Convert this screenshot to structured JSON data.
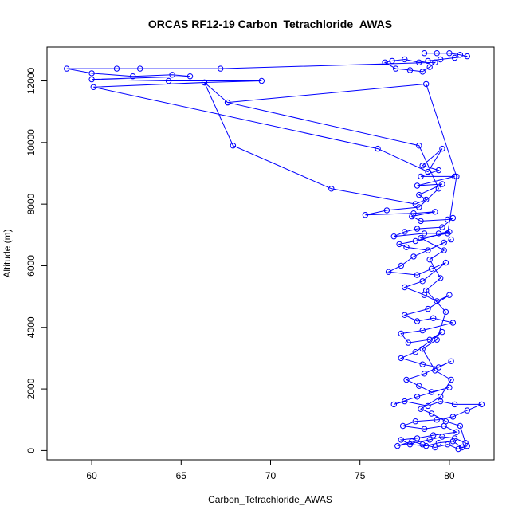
{
  "chart_data": {
    "type": "line",
    "title": "ORCAS RF12-19 Carbon_Tetrachloride_AWAS",
    "xlabel": "Carbon_Tetrachloride_AWAS",
    "ylabel": "Altitude (m)",
    "xlim": [
      57.5,
      82.5
    ],
    "ylim": [
      -300,
      13100
    ],
    "xticks": [
      60,
      65,
      70,
      75,
      80
    ],
    "yticks": [
      0,
      2000,
      4000,
      6000,
      8000,
      10000,
      12000
    ],
    "grid": false,
    "legend": "none",
    "color": "#0000ff",
    "marker": "open-circle",
    "series": [
      {
        "points": [
          [
            78.6,
            12900
          ],
          [
            79.3,
            12900
          ],
          [
            80.0,
            12900
          ],
          [
            80.6,
            12850
          ],
          [
            81.0,
            12800
          ],
          [
            80.3,
            12750
          ],
          [
            79.5,
            12700
          ],
          [
            78.8,
            12650
          ],
          [
            78.3,
            12600
          ],
          [
            77.5,
            12700
          ],
          [
            76.8,
            12650
          ],
          [
            76.4,
            12600
          ],
          [
            77.0,
            12400
          ],
          [
            77.8,
            12350
          ],
          [
            78.5,
            12300
          ],
          [
            78.9,
            12450
          ],
          [
            79.2,
            12600
          ],
          [
            67.2,
            12400
          ],
          [
            62.7,
            12400
          ],
          [
            61.4,
            12400
          ],
          [
            58.6,
            12400
          ],
          [
            60.0,
            12250
          ],
          [
            62.3,
            12150
          ],
          [
            64.5,
            12200
          ],
          [
            65.5,
            12150
          ],
          [
            60.0,
            12050
          ],
          [
            64.3,
            12000
          ],
          [
            69.5,
            12000
          ],
          [
            66.3,
            11950
          ],
          [
            60.1,
            11800
          ],
          [
            76.0,
            9800
          ],
          [
            78.8,
            9050
          ],
          [
            79.6,
            9800
          ],
          [
            78.5,
            9250
          ],
          [
            79.4,
            9100
          ],
          [
            78.4,
            8900
          ],
          [
            80.3,
            8900
          ],
          [
            78.2,
            8600
          ],
          [
            79.6,
            8650
          ],
          [
            78.3,
            8300
          ],
          [
            78.7,
            8150
          ],
          [
            78.1,
            8000
          ],
          [
            73.4,
            8500
          ],
          [
            67.9,
            9900
          ],
          [
            66.3,
            11950
          ],
          [
            67.6,
            11300
          ],
          [
            78.3,
            9900
          ],
          [
            79.4,
            8500
          ],
          [
            78.3,
            7900
          ],
          [
            76.5,
            7800
          ],
          [
            75.3,
            7650
          ],
          [
            78.0,
            7700
          ],
          [
            79.2,
            7750
          ],
          [
            77.9,
            7600
          ],
          [
            78.4,
            7450
          ],
          [
            79.9,
            7500
          ],
          [
            80.2,
            7550
          ],
          [
            79.6,
            7250
          ],
          [
            78.2,
            7200
          ],
          [
            77.5,
            7100
          ],
          [
            76.9,
            6950
          ],
          [
            78.6,
            7050
          ],
          [
            79.4,
            7050
          ],
          [
            80.0,
            7100
          ],
          [
            78.1,
            6800
          ],
          [
            77.2,
            6700
          ],
          [
            77.6,
            6600
          ],
          [
            78.8,
            6500
          ],
          [
            79.7,
            6750
          ],
          [
            80.1,
            6850
          ],
          [
            78.0,
            6300
          ],
          [
            77.3,
            6000
          ],
          [
            76.6,
            5800
          ],
          [
            78.2,
            5700
          ],
          [
            79.0,
            5900
          ],
          [
            79.8,
            6100
          ],
          [
            78.5,
            5500
          ],
          [
            77.5,
            5300
          ],
          [
            78.6,
            5050
          ],
          [
            79.3,
            4850
          ],
          [
            80.0,
            5050
          ],
          [
            78.8,
            4600
          ],
          [
            77.5,
            4400
          ],
          [
            78.2,
            4200
          ],
          [
            79.1,
            4300
          ],
          [
            80.2,
            4150
          ],
          [
            78.5,
            3900
          ],
          [
            77.3,
            3800
          ],
          [
            77.7,
            3500
          ],
          [
            78.9,
            3600
          ],
          [
            79.6,
            3850
          ],
          [
            78.1,
            3200
          ],
          [
            77.3,
            3000
          ],
          [
            78.5,
            2800
          ],
          [
            79.4,
            2700
          ],
          [
            80.1,
            2900
          ],
          [
            78.6,
            2500
          ],
          [
            77.6,
            2300
          ],
          [
            78.3,
            2100
          ],
          [
            79.0,
            1900
          ],
          [
            80.0,
            2050
          ],
          [
            78.2,
            1750
          ],
          [
            76.9,
            1500
          ],
          [
            77.5,
            1600
          ],
          [
            78.8,
            1450
          ],
          [
            79.5,
            1600
          ],
          [
            80.3,
            1500
          ],
          [
            81.8,
            1500
          ],
          [
            81.0,
            1300
          ],
          [
            80.2,
            1100
          ],
          [
            79.3,
            1000
          ],
          [
            78.1,
            950
          ],
          [
            77.4,
            800
          ],
          [
            78.6,
            700
          ],
          [
            79.7,
            800
          ],
          [
            80.4,
            600
          ],
          [
            79.1,
            500
          ],
          [
            78.2,
            400
          ],
          [
            77.3,
            350
          ],
          [
            77.8,
            200
          ],
          [
            78.7,
            150
          ],
          [
            79.4,
            250
          ],
          [
            80.2,
            300
          ],
          [
            80.7,
            100
          ],
          [
            81.0,
            150
          ],
          [
            80.5,
            50
          ],
          [
            79.9,
            200
          ],
          [
            79.2,
            100
          ],
          [
            78.5,
            200
          ],
          [
            77.9,
            300
          ],
          [
            77.1,
            150
          ],
          [
            78.9,
            350
          ],
          [
            79.6,
            450
          ],
          [
            80.3,
            400
          ],
          [
            80.9,
            250
          ],
          [
            80.6,
            800
          ],
          [
            79.8,
            950
          ],
          [
            79.0,
            1200
          ],
          [
            78.4,
            1350
          ],
          [
            79.5,
            1750
          ],
          [
            80.1,
            2300
          ],
          [
            79.2,
            2600
          ],
          [
            78.5,
            3300
          ],
          [
            79.3,
            3600
          ],
          [
            79.8,
            4500
          ],
          [
            78.7,
            5200
          ],
          [
            79.5,
            5600
          ],
          [
            78.9,
            6200
          ],
          [
            79.7,
            6500
          ],
          [
            78.4,
            6900
          ],
          [
            79.9,
            7050
          ],
          [
            80.4,
            8900
          ],
          [
            78.7,
            11900
          ],
          [
            67.6,
            11300
          ]
        ]
      }
    ]
  }
}
